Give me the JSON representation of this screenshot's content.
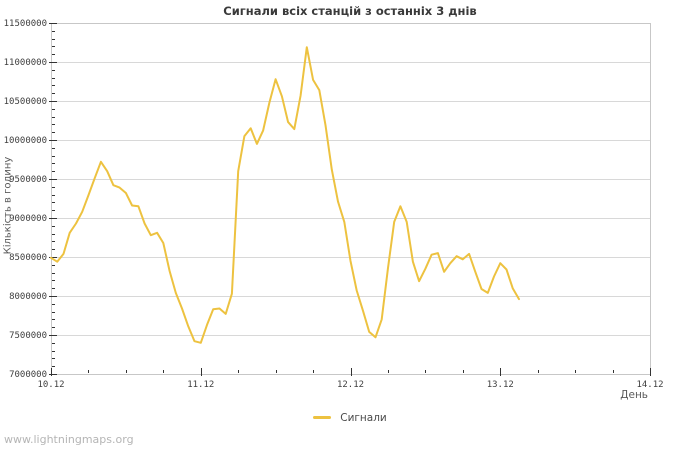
{
  "page": {
    "background": "#ffffff",
    "watermark": "www.lightningmaps.org"
  },
  "colors": {
    "series_line": "#edc240",
    "gridline": "#d8d8d8",
    "plot_border": "#c7c7c7",
    "tick_mark": "#333333",
    "tick_label": "#3f3f3f",
    "title_text": "#3a3a3a",
    "axis_title_text": "#5a5a5a",
    "watermark_text": "#b5b5b5"
  },
  "chart_data": {
    "type": "line",
    "title": "Сигнали всіх станцій з останніх 3 днів",
    "xlabel": "День",
    "ylabel": "Кількість в годину",
    "grid": true,
    "x_axis": {
      "tick_labels": [
        "10.12",
        "11.12",
        "12.12",
        "13.12",
        "14.12"
      ],
      "days_span": 4,
      "minor_ticks_per_day": 4
    },
    "y_axis": {
      "ticks": [
        7000000,
        7500000,
        8000000,
        8500000,
        9000000,
        9500000,
        10000000,
        10500000,
        11000000,
        11500000
      ],
      "minor_tick_step": 100000,
      "range": [
        7000000,
        11500000
      ]
    },
    "legend": {
      "position": "bottom-center",
      "entries": [
        {
          "label": "Сигнали",
          "color": "#edc240"
        }
      ]
    },
    "series": [
      {
        "name": "Сигнали",
        "color": "#edc240",
        "x_unit": "hours_since_10.12_00:00",
        "x": [
          0,
          1,
          2,
          3,
          4,
          5,
          6,
          7,
          8,
          9,
          10,
          11,
          12,
          13,
          14,
          15,
          16,
          17,
          18,
          19,
          20,
          21,
          22,
          23,
          24,
          25,
          26,
          27,
          28,
          29,
          30,
          31,
          32,
          33,
          34,
          35,
          36,
          37,
          38,
          39,
          40,
          41,
          42,
          43,
          44,
          45,
          46,
          47,
          48,
          49,
          50,
          51,
          52,
          53,
          54,
          55,
          56,
          57,
          58,
          59,
          60,
          61,
          62,
          63,
          64,
          65,
          66,
          67,
          68,
          69,
          70,
          71,
          72,
          73,
          74,
          75
        ],
        "values": [
          8490000,
          8440000,
          8540000,
          8810000,
          8930000,
          9080000,
          9290000,
          9510000,
          9720000,
          9600000,
          9420000,
          9390000,
          9320000,
          9160000,
          9150000,
          8930000,
          8780000,
          8810000,
          8680000,
          8320000,
          8040000,
          7840000,
          7610000,
          7420000,
          7400000,
          7630000,
          7830000,
          7840000,
          7770000,
          8030000,
          9600000,
          10050000,
          10150000,
          9950000,
          10120000,
          10480000,
          10780000,
          10560000,
          10230000,
          10140000,
          10570000,
          11190000,
          10770000,
          10640000,
          10190000,
          9620000,
          9210000,
          8950000,
          8450000,
          8070000,
          7810000,
          7540000,
          7470000,
          7700000,
          8350000,
          8950000,
          9150000,
          8950000,
          8440000,
          8190000,
          8350000,
          8530000,
          8550000,
          8310000,
          8420000,
          8510000,
          8470000,
          8540000,
          8310000,
          8090000,
          8040000,
          8250000,
          8420000,
          8340000,
          8100000,
          7960000
        ]
      }
    ]
  }
}
